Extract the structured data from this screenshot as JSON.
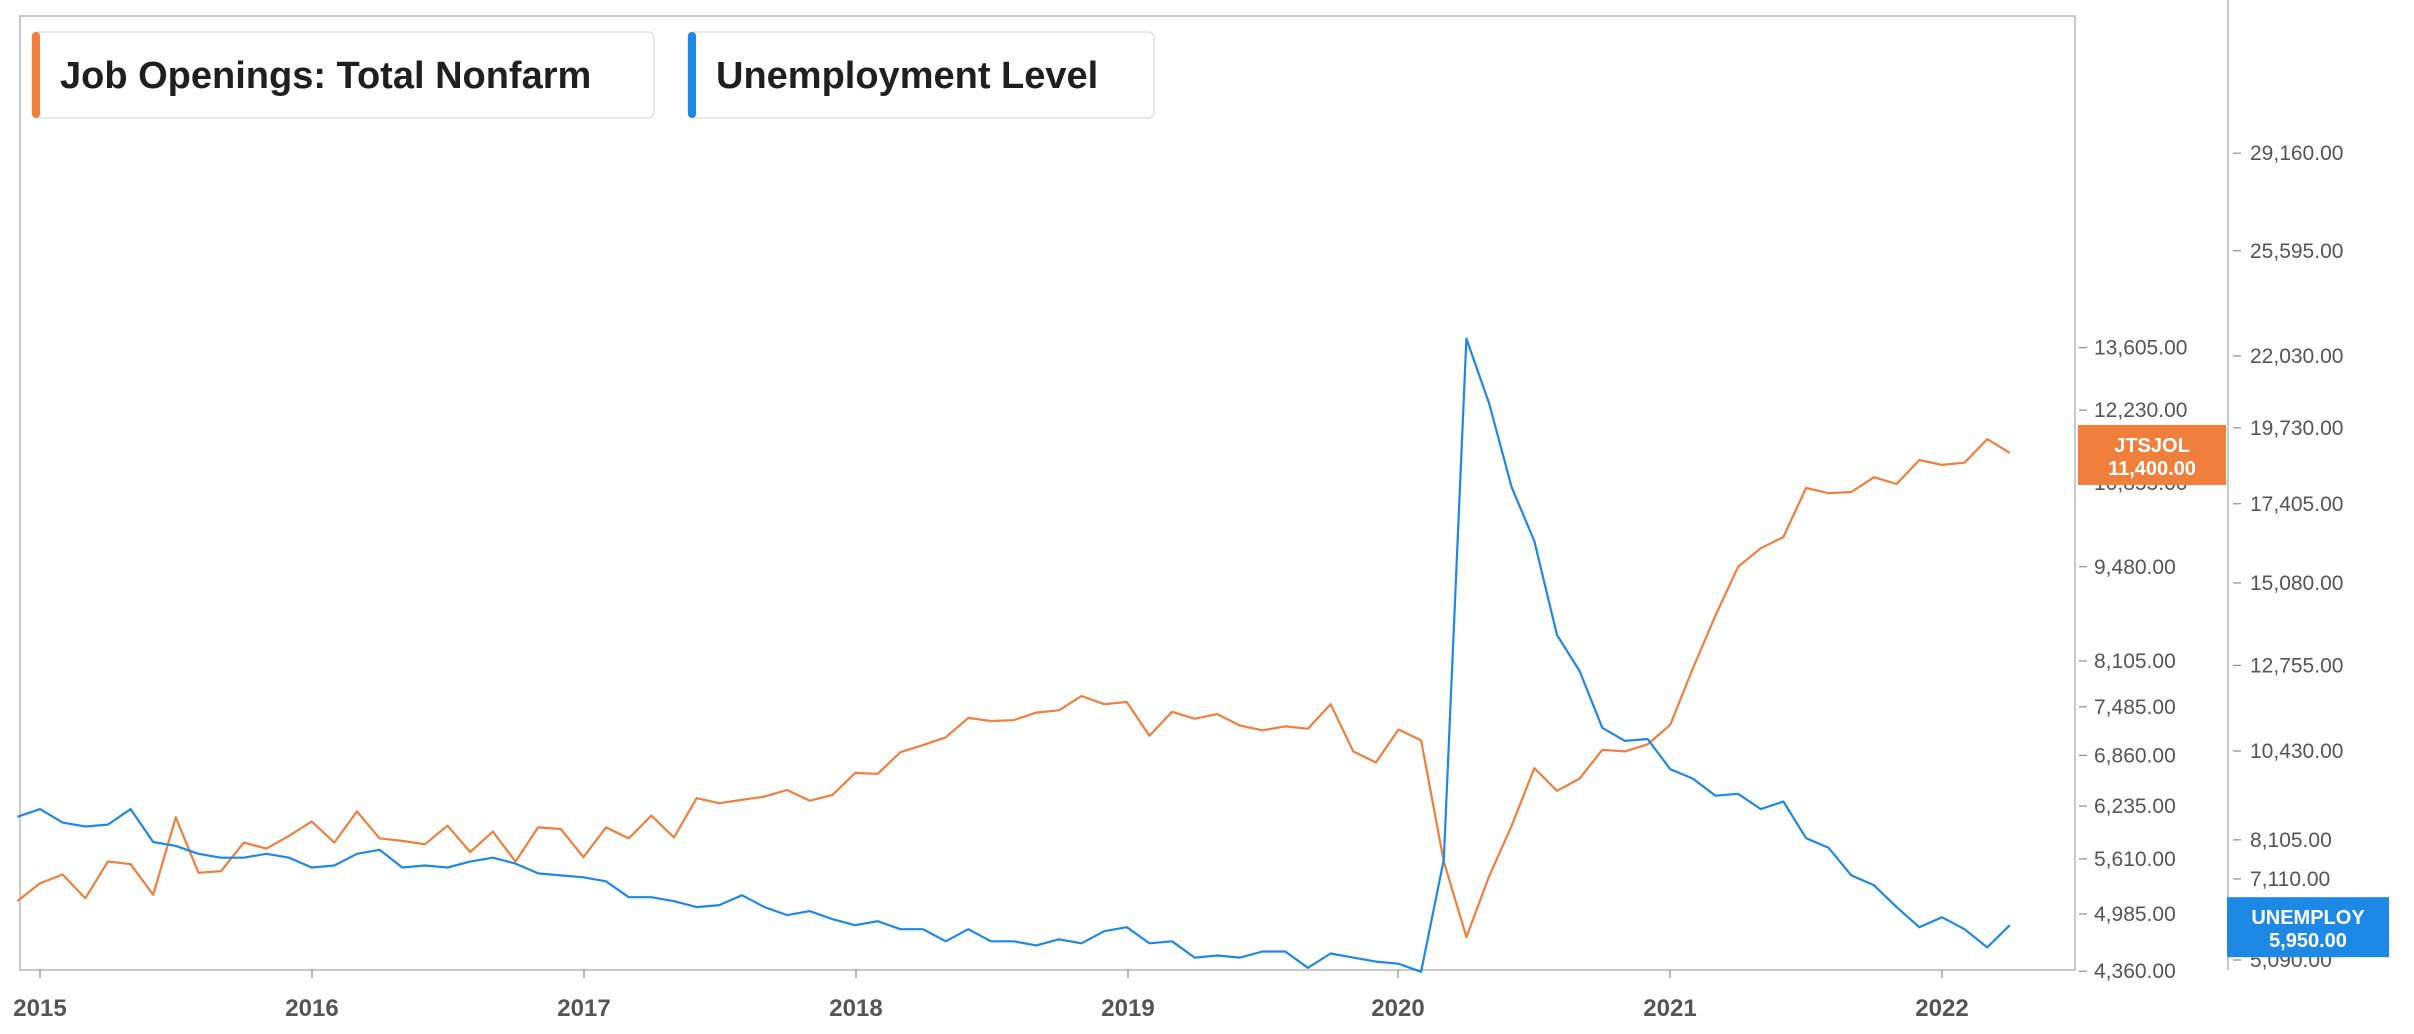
{
  "chart_data": {
    "type": "line",
    "legend": [
      {
        "label": "Job Openings: Total Nonfarm",
        "color": "#F07F3C"
      },
      {
        "label": "Unemployment Level",
        "color": "#1E88E5"
      }
    ],
    "x_axis": {
      "ticks": [
        "2015",
        "2016",
        "2017",
        "2018",
        "2019",
        "2020",
        "2021",
        "2022"
      ]
    },
    "y_axis_left": {
      "series": "JTSJOL",
      "range": [
        4360,
        14200
      ],
      "ticks": [
        "4,360.00",
        "4,985.00",
        "5,610.00",
        "6,235.00",
        "6,860.00",
        "7,485.00",
        "8,105.00",
        "9,480.00",
        "10,855.00",
        "12,230.00",
        "13,605.00"
      ],
      "tick_values": [
        4360,
        4985,
        5610,
        6235,
        6860,
        7485,
        8105,
        9480,
        10855,
        12230,
        13605
      ]
    },
    "y_axis_right": {
      "series": "UNEMPLOY",
      "range": [
        5090,
        30200
      ],
      "ticks": [
        "5,090.00",
        "7,110.00",
        "8,105.00",
        "10,430.00",
        "12,755.00",
        "15,080.00",
        "17,405.00",
        "19,730.00",
        "22,030.00",
        "25,595.00",
        "29,160.00"
      ],
      "tick_values": [
        5090,
        7110,
        8105,
        10430,
        12755,
        15080,
        17405,
        19730,
        22030,
        25595,
        29160
      ]
    },
    "series": [
      {
        "name": "Job Openings: Total Nonfarm",
        "axis": "left",
        "color": "#F07F3C",
        "badge": {
          "code": "JTSJOL",
          "value": "11,400.00"
        },
        "x": [
          "2014-12",
          "2015-01",
          "2015-02",
          "2015-03",
          "2015-04",
          "2015-05",
          "2015-06",
          "2015-07",
          "2015-08",
          "2015-09",
          "2015-10",
          "2015-11",
          "2015-12",
          "2016-01",
          "2016-02",
          "2016-03",
          "2016-04",
          "2016-05",
          "2016-06",
          "2016-07",
          "2016-08",
          "2016-09",
          "2016-10",
          "2016-11",
          "2016-12",
          "2017-01",
          "2017-02",
          "2017-03",
          "2017-04",
          "2017-05",
          "2017-06",
          "2017-07",
          "2017-08",
          "2017-09",
          "2017-10",
          "2017-11",
          "2017-12",
          "2018-01",
          "2018-02",
          "2018-03",
          "2018-04",
          "2018-05",
          "2018-06",
          "2018-07",
          "2018-08",
          "2018-09",
          "2018-10",
          "2018-11",
          "2018-12",
          "2019-01",
          "2019-02",
          "2019-03",
          "2019-04",
          "2019-05",
          "2019-06",
          "2019-07",
          "2019-08",
          "2019-09",
          "2019-10",
          "2019-11",
          "2019-12",
          "2020-01",
          "2020-02",
          "2020-03",
          "2020-04",
          "2020-05",
          "2020-06",
          "2020-07",
          "2020-08",
          "2020-09",
          "2020-10",
          "2020-11",
          "2020-12",
          "2021-01",
          "2021-02",
          "2021-03",
          "2021-04",
          "2021-05",
          "2021-06",
          "2021-07",
          "2021-08",
          "2021-09",
          "2021-10",
          "2021-11",
          "2021-12",
          "2022-01",
          "2022-02",
          "2022-03",
          "2022-04"
        ],
        "values": [
          5130,
          5330,
          5430,
          5160,
          5580,
          5550,
          5200,
          6100,
          5450,
          5470,
          5800,
          5730,
          5880,
          6050,
          5800,
          6170,
          5850,
          5820,
          5780,
          6000,
          5690,
          5930,
          5580,
          5980,
          5960,
          5630,
          5980,
          5850,
          6120,
          5860,
          6330,
          6270,
          6310,
          6350,
          6430,
          6300,
          6370,
          6640,
          6630,
          6900,
          6990,
          7090,
          7340,
          7300,
          7310,
          7410,
          7440,
          7630,
          7520,
          7550,
          7110,
          7420,
          7330,
          7390,
          7240,
          7180,
          7230,
          7200,
          7520,
          6910,
          6770,
          7190,
          7050,
          5580,
          4730,
          5410,
          6000,
          6700,
          6420,
          6570,
          6930,
          6910,
          7000,
          7250,
          8000,
          8750,
          9480,
          9770,
          9950,
          10770,
          10680,
          10700,
          10960,
          10840,
          11270,
          11180,
          11220,
          11660,
          11400
        ]
      },
      {
        "name": "Unemployment Level",
        "axis": "right",
        "color": "#1E88E5",
        "badge": {
          "code": "UNEMPLOY",
          "value": "5,950.00"
        },
        "x": [
          "2014-12",
          "2015-01",
          "2015-02",
          "2015-03",
          "2015-04",
          "2015-05",
          "2015-06",
          "2015-07",
          "2015-08",
          "2015-09",
          "2015-10",
          "2015-11",
          "2015-12",
          "2016-01",
          "2016-02",
          "2016-03",
          "2016-04",
          "2016-05",
          "2016-06",
          "2016-07",
          "2016-08",
          "2016-09",
          "2016-10",
          "2016-11",
          "2016-12",
          "2017-01",
          "2017-02",
          "2017-03",
          "2017-04",
          "2017-05",
          "2017-06",
          "2017-07",
          "2017-08",
          "2017-09",
          "2017-10",
          "2017-11",
          "2017-12",
          "2018-01",
          "2018-02",
          "2018-03",
          "2018-04",
          "2018-05",
          "2018-06",
          "2018-07",
          "2018-08",
          "2018-09",
          "2018-10",
          "2018-11",
          "2018-12",
          "2019-01",
          "2019-02",
          "2019-03",
          "2019-04",
          "2019-05",
          "2019-06",
          "2019-07",
          "2019-08",
          "2019-09",
          "2019-10",
          "2019-11",
          "2019-12",
          "2020-01",
          "2020-02",
          "2020-03",
          "2020-04",
          "2020-05",
          "2020-06",
          "2020-07",
          "2020-08",
          "2020-09",
          "2020-10",
          "2020-11",
          "2020-12",
          "2021-01",
          "2021-02",
          "2021-03",
          "2021-04",
          "2021-05",
          "2021-06",
          "2021-07",
          "2021-08",
          "2021-09",
          "2021-10",
          "2021-11",
          "2021-12",
          "2022-01",
          "2022-02",
          "2022-03",
          "2022-04"
        ],
        "values": [
          8700,
          8900,
          8550,
          8450,
          8500,
          8900,
          8050,
          7950,
          7750,
          7650,
          7650,
          7750,
          7650,
          7400,
          7450,
          7750,
          7850,
          7400,
          7450,
          7400,
          7550,
          7650,
          7500,
          7250,
          7200,
          7150,
          7050,
          6650,
          6650,
          6550,
          6400,
          6450,
          6700,
          6400,
          6200,
          6300,
          6100,
          5950,
          6050,
          5850,
          5850,
          5550,
          5850,
          5550,
          5550,
          5450,
          5600,
          5500,
          5800,
          5900,
          5500,
          5550,
          5150,
          5200,
          5150,
          5300,
          5300,
          4900,
          5250,
          5150,
          5050,
          5000,
          4800,
          7600,
          22600,
          20500,
          17900,
          16300,
          13600,
          12600,
          11050,
          10700,
          10750,
          9950,
          9700,
          9250,
          9300,
          8900,
          9100,
          8150,
          7900,
          7200,
          6950,
          6400,
          5900,
          6150,
          5850,
          5400,
          5950
        ]
      }
    ]
  }
}
